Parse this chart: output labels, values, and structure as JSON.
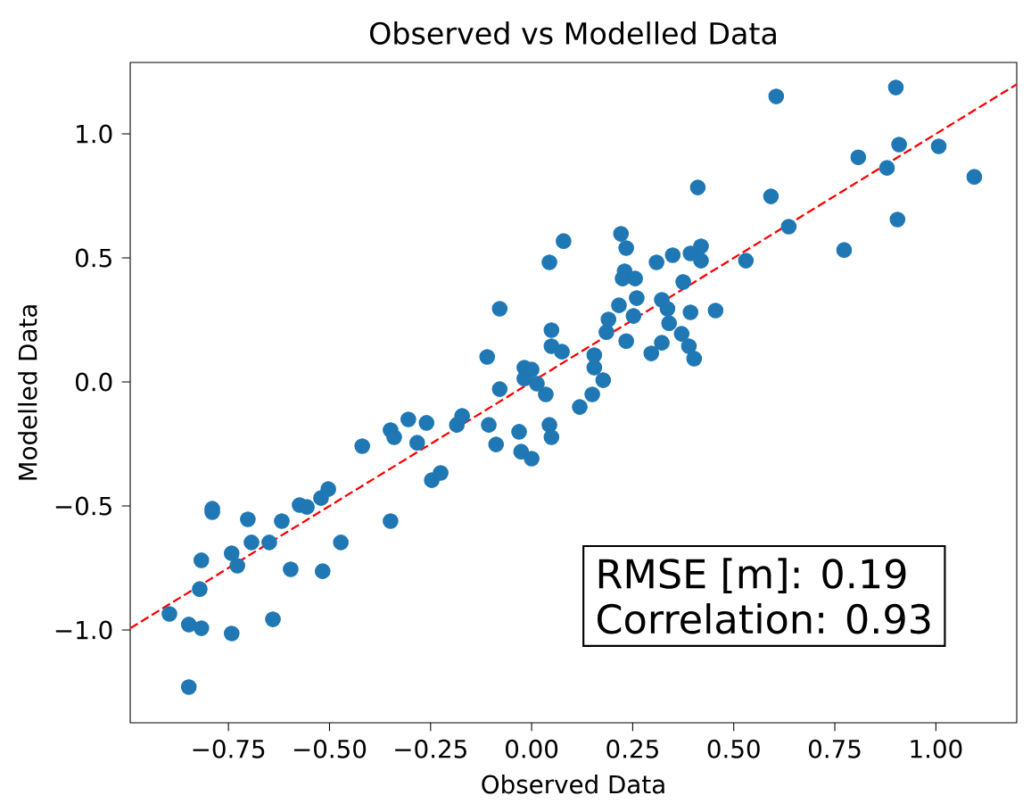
{
  "chart_data": {
    "type": "scatter",
    "title": "Observed vs Modelled Data",
    "xlabel": "Observed Data",
    "ylabel": "Modelled Data",
    "xlim": [
      -0.993,
      1.2
    ],
    "ylim": [
      -1.374,
      1.288
    ],
    "xticks": [
      {
        "value": -0.75,
        "label": "−0.75"
      },
      {
        "value": -0.5,
        "label": "−0.50"
      },
      {
        "value": -0.25,
        "label": "−0.25"
      },
      {
        "value": 0,
        "label": "0.00"
      },
      {
        "value": 0.25,
        "label": "0.25"
      },
      {
        "value": 0.5,
        "label": "0.50"
      },
      {
        "value": 0.75,
        "label": "0.75"
      },
      {
        "value": 1,
        "label": "1.00"
      }
    ],
    "yticks": [
      {
        "value": -1,
        "label": "−1.0"
      },
      {
        "value": -0.5,
        "label": "−0.5"
      },
      {
        "value": 0,
        "label": "0.0"
      },
      {
        "value": 0.5,
        "label": "0.5"
      },
      {
        "value": 1,
        "label": "1.0"
      }
    ],
    "grid": false,
    "annotations": [
      "RMSE [m]: 0.19",
      "Correlation: 0.93"
    ],
    "series": [
      {
        "color": "#1f77b4",
        "marker": "circle",
        "x": [
          -0.896,
          -0.848,
          -0.817,
          -0.742,
          -0.848,
          -0.821,
          -0.817,
          -0.79,
          -0.79,
          -0.742,
          -0.728,
          -0.702,
          -0.693,
          -0.649,
          -0.64,
          -0.618,
          -0.596,
          -0.574,
          -0.556,
          -0.521,
          -0.503,
          -0.517,
          -0.472,
          -0.419,
          -0.349,
          -0.349,
          -0.34,
          -0.305,
          -0.283,
          -0.26,
          -0.247,
          -0.225,
          -0.185,
          -0.172,
          -0.106,
          -0.088,
          -0.079,
          -0.11,
          -0.031,
          -0.026,
          0.0,
          -0.018,
          -0.018,
          0.0,
          0.013,
          0.035,
          0.044,
          0.049,
          0.079,
          0.044,
          -0.079,
          0.049,
          0.049,
          0.075,
          0.901,
          0.605,
          0.909,
          1.007,
          0.808,
          0.879,
          1.095,
          0.411,
          0.592,
          0.905,
          0.636,
          0.773,
          0.221,
          0.234,
          0.309,
          0.349,
          0.393,
          0.419,
          0.419,
          0.53,
          0.23,
          0.225,
          0.256,
          0.375,
          0.26,
          0.216,
          0.322,
          0.336,
          0.252,
          0.393,
          0.455,
          0.19,
          0.185,
          0.371,
          0.322,
          0.296,
          0.234,
          0.389,
          0.402,
          0.155,
          0.155,
          0.177,
          0.15,
          0.119,
          0.34
        ],
        "values": [
          -0.935,
          -0.978,
          -0.993,
          -1.014,
          -1.23,
          -0.835,
          -0.719,
          -0.511,
          -0.525,
          -0.691,
          -0.741,
          -0.554,
          -0.647,
          -0.647,
          -0.957,
          -0.561,
          -0.755,
          -0.496,
          -0.504,
          -0.468,
          -0.432,
          -0.763,
          -0.647,
          -0.259,
          -0.561,
          -0.194,
          -0.223,
          -0.151,
          -0.245,
          -0.165,
          -0.396,
          -0.367,
          -0.173,
          -0.137,
          -0.173,
          -0.252,
          -0.029,
          0.101,
          -0.201,
          -0.281,
          -0.309,
          0.058,
          0.014,
          0.05,
          -0.007,
          -0.05,
          -0.173,
          -0.223,
          0.568,
          0.482,
          0.295,
          0.209,
          0.144,
          0.122,
          1.187,
          1.151,
          0.957,
          0.95,
          0.906,
          0.863,
          0.827,
          0.784,
          0.748,
          0.655,
          0.626,
          0.532,
          0.597,
          0.54,
          0.482,
          0.511,
          0.518,
          0.547,
          0.489,
          0.489,
          0.446,
          0.417,
          0.417,
          0.403,
          0.338,
          0.309,
          0.331,
          0.295,
          0.266,
          0.281,
          0.288,
          0.252,
          0.201,
          0.194,
          0.158,
          0.115,
          0.165,
          0.144,
          0.094,
          0.108,
          0.058,
          0.007,
          -0.05,
          -0.101,
          0.237
        ]
      },
      {
        "type": "line",
        "color": "#ff0000",
        "marker": "none",
        "line_style": "dashed",
        "x": [
          -0.993,
          1.2
        ],
        "values": [
          -0.993,
          1.2
        ]
      }
    ]
  }
}
